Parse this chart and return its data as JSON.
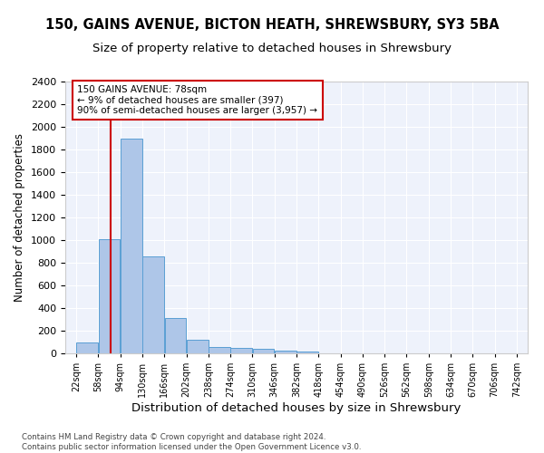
{
  "title_line1": "150, GAINS AVENUE, BICTON HEATH, SHREWSBURY, SY3 5BA",
  "title_line2": "Size of property relative to detached houses in Shrewsbury",
  "xlabel": "Distribution of detached houses by size in Shrewsbury",
  "ylabel": "Number of detached properties",
  "bar_values": [
    97,
    1012,
    1893,
    860,
    316,
    118,
    60,
    52,
    42,
    28,
    18,
    0,
    0,
    0,
    0,
    0,
    0,
    0,
    0,
    0
  ],
  "bin_edges": [
    22,
    58,
    94,
    130,
    166,
    202,
    238,
    274,
    310,
    346,
    382,
    418,
    454,
    490,
    526,
    562,
    598,
    634,
    670,
    706,
    742
  ],
  "bin_labels": [
    "22sqm",
    "58sqm",
    "94sqm",
    "130sqm",
    "166sqm",
    "202sqm",
    "238sqm",
    "274sqm",
    "310sqm",
    "346sqm",
    "382sqm",
    "418sqm",
    "454sqm",
    "490sqm",
    "526sqm",
    "562sqm",
    "598sqm",
    "634sqm",
    "670sqm",
    "706sqm",
    "742sqm"
  ],
  "bar_color": "#aec6e8",
  "bar_edgecolor": "#5a9fd4",
  "vline_x": 78,
  "vline_color": "#cc0000",
  "annotation_line1": "150 GAINS AVENUE: 78sqm",
  "annotation_line2": "← 9% of detached houses are smaller (397)",
  "annotation_line3": "90% of semi-detached houses are larger (3,957) →",
  "annotation_box_color": "#cc0000",
  "ylim": [
    0,
    2400
  ],
  "yticks": [
    0,
    200,
    400,
    600,
    800,
    1000,
    1200,
    1400,
    1600,
    1800,
    2000,
    2200,
    2400
  ],
  "background_color": "#eef2fb",
  "grid_color": "#ffffff",
  "footnote": "Contains HM Land Registry data © Crown copyright and database right 2024.\nContains public sector information licensed under the Open Government Licence v3.0.",
  "title_fontsize": 10.5,
  "subtitle_fontsize": 9.5,
  "ylabel_fontsize": 8.5,
  "xlabel_fontsize": 9.5,
  "tick_fontsize": 8,
  "xtick_fontsize": 7
}
